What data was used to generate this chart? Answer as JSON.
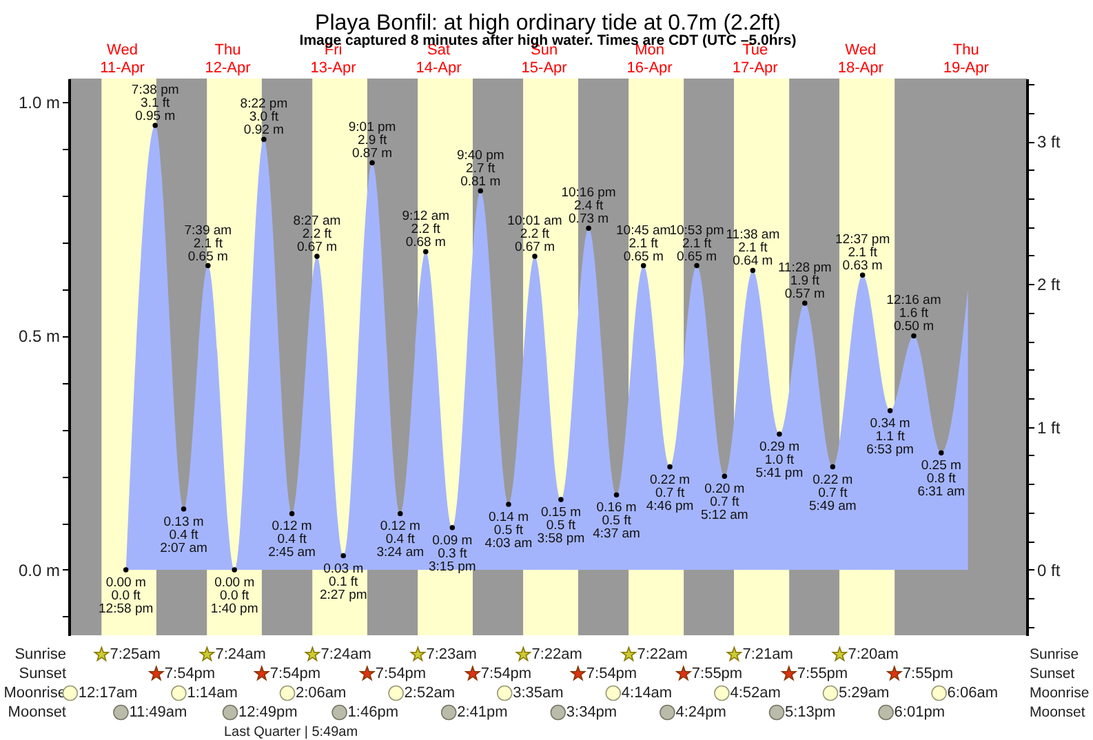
{
  "chart_data": {
    "type": "area",
    "title": "Playa Bonfil: at high  ordinary tide at 0.7m (2.2ft)",
    "subtitle": "Image captured 8 minutes after high water. Times are CDT (UTC –5.0hrs)",
    "x": [
      "--04-11T12:58",
      "--04-11T19:38",
      "--04-12T02:07",
      "--04-12T07:39",
      "--04-12T13:40",
      "--04-12T20:22",
      "--04-13T02:45",
      "--04-13T08:27",
      "--04-13T14:27",
      "--04-13T21:01",
      "--04-14T03:24",
      "--04-14T09:12",
      "--04-14T15:15",
      "--04-14T21:40",
      "--04-15T04:03",
      "--04-15T10:01",
      "--04-15T15:58",
      "--04-15T22:16",
      "--04-16T04:37",
      "--04-16T10:45",
      "--04-16T16:46",
      "--04-16T22:53",
      "--04-17T05:12",
      "--04-17T11:38",
      "--04-17T17:41",
      "--04-17T23:28",
      "--04-18T05:49",
      "--04-18T12:37",
      "--04-18T18:53",
      "--04-19T00:16",
      "--04-19T06:31",
      "--04-19T12:36"
    ],
    "values": [
      0.0,
      0.95,
      0.13,
      0.65,
      0.0,
      0.92,
      0.12,
      0.67,
      0.03,
      0.87,
      0.12,
      0.68,
      0.09,
      0.81,
      0.14,
      0.67,
      0.15,
      0.73,
      0.16,
      0.65,
      0.22,
      0.65,
      0.2,
      0.64,
      0.29,
      0.57,
      0.22,
      0.63,
      0.34,
      0.5,
      0.25,
      0.6
    ],
    "value_labels": [
      "0.00 m\n0.0 ft\n12:58 pm",
      "7:38 pm\n3.1 ft\n0.95 m",
      "0.13 m\n0.4 ft\n2:07 am",
      "7:39 am\n2.1 ft\n0.65 m",
      "0.00 m\n0.0 ft\n1:40 pm",
      "8:22 pm\n3.0 ft\n0.92 m",
      "0.12 m\n0.4 ft\n2:45 am",
      "8:27 am\n2.2 ft\n0.67 m",
      "0.03 m\n0.1 ft\n2:27 pm",
      "9:01 pm\n2.9 ft\n0.87 m",
      "0.12 m\n0.4 ft\n3:24 am",
      "9:12 am\n2.2 ft\n0.68 m",
      "0.09 m\n0.3 ft\n3:15 pm",
      "9:40 pm\n2.7 ft\n0.81 m",
      "0.14 m\n0.5 ft\n4:03 am",
      "10:01 am\n2.2 ft\n0.67 m",
      "0.15 m\n0.5 ft\n3:58 pm",
      "10:16 pm\n2.4 ft\n0.73 m",
      "0.16 m\n0.5 ft\n4:37 am",
      "10:45 am\n2.1 ft\n0.65 m",
      "0.22 m\n0.7 ft\n4:46 pm",
      "10:53 pm\n2.1 ft\n0.65 m",
      "0.20 m\n0.7 ft\n5:12 am",
      "11:38 am\n2.1 ft\n0.64 m",
      "0.29 m\n1.0 ft\n5:41 pm",
      "11:28 pm\n1.9 ft\n0.57 m",
      "0.22 m\n0.7 ft\n5:49 am",
      "12:37 pm\n2.1 ft\n0.63 m",
      "0.34 m\n1.1 ft\n6:53 pm",
      "12:16 am\n1.6 ft\n0.50 m",
      "0.25 m\n0.8 ft\n6:31 am",
      null
    ],
    "color": "#a4b4fc",
    "marker": "circle",
    "xlim": [
      "--04-11T00:00",
      "--04-20T02:00"
    ],
    "xticks": [
      {
        "value": "--04-11T12:00",
        "label": "Wed\n11-Apr"
      },
      {
        "value": "--04-12T12:00",
        "label": "Thu\n12-Apr"
      },
      {
        "value": "--04-13T12:00",
        "label": "Fri\n13-Apr"
      },
      {
        "value": "--04-14T12:00",
        "label": "Sat\n14-Apr"
      },
      {
        "value": "--04-15T12:00",
        "label": "Sun\n15-Apr"
      },
      {
        "value": "--04-16T12:00",
        "label": "Mon\n16-Apr"
      },
      {
        "value": "--04-17T12:00",
        "label": "Tue\n17-Apr"
      },
      {
        "value": "--04-18T12:00",
        "label": "Wed\n18-Apr"
      },
      {
        "value": "--04-19T12:00",
        "label": "Thu\n19-Apr"
      }
    ],
    "ylim": [
      -0.14,
      1.05
    ],
    "yticks": [
      {
        "value": -0.1,
        "label": null
      },
      {
        "value": 0,
        "label": "0.0 m"
      },
      {
        "value": 0.1,
        "label": null
      },
      {
        "value": 0.2,
        "label": null
      },
      {
        "value": 0.3,
        "label": null
      },
      {
        "value": 0.4,
        "label": null
      },
      {
        "value": 0.5,
        "label": "0.5 m"
      },
      {
        "value": 0.6,
        "label": null
      },
      {
        "value": 0.7,
        "label": null
      },
      {
        "value": 0.8,
        "label": null
      },
      {
        "value": 0.9,
        "label": null
      },
      {
        "value": 1,
        "label": "1.0 m"
      }
    ],
    "y2lim": [
      -0.46,
      3.44
    ],
    "y2ticks": [
      {
        "value": -0.4,
        "label": null
      },
      {
        "value": -0.2,
        "label": null
      },
      {
        "value": 0,
        "label": "0 ft"
      },
      {
        "value": 0.2,
        "label": null
      },
      {
        "value": 0.4,
        "label": null
      },
      {
        "value": 0.6,
        "label": null
      },
      {
        "value": 0.8,
        "label": null
      },
      {
        "value": 1,
        "label": "1 ft"
      },
      {
        "value": 1.2,
        "label": null
      },
      {
        "value": 1.4,
        "label": null
      },
      {
        "value": 1.6,
        "label": null
      },
      {
        "value": 1.8,
        "label": null
      },
      {
        "value": 2,
        "label": "2 ft"
      },
      {
        "value": 2.2,
        "label": null
      },
      {
        "value": 2.4,
        "label": null
      },
      {
        "value": 2.6,
        "label": null
      },
      {
        "value": 2.8,
        "label": null
      },
      {
        "value": 3,
        "label": "3 ft"
      },
      {
        "value": 3.2,
        "label": null
      },
      {
        "value": 3.4,
        "label": null
      }
    ],
    "bands": [
      {
        "axis": "x",
        "from": "--04-11T07:25",
        "to": "--04-11T19:54",
        "color": "#ffffcc"
      },
      {
        "axis": "x",
        "from": "--04-12T07:24",
        "to": "--04-12T19:54",
        "color": "#ffffcc"
      },
      {
        "axis": "x",
        "from": "--04-13T07:24",
        "to": "--04-13T19:54",
        "color": "#ffffcc"
      },
      {
        "axis": "x",
        "from": "--04-14T07:23",
        "to": "--04-14T19:54",
        "color": "#ffffcc"
      },
      {
        "axis": "x",
        "from": "--04-15T07:22",
        "to": "--04-15T19:54",
        "color": "#ffffcc"
      },
      {
        "axis": "x",
        "from": "--04-16T07:22",
        "to": "--04-16T19:55",
        "color": "#ffffcc"
      },
      {
        "axis": "x",
        "from": "--04-17T07:21",
        "to": "--04-17T19:55",
        "color": "#ffffcc"
      },
      {
        "axis": "x",
        "from": "--04-18T07:20",
        "to": "--04-18T19:55",
        "color": "#ffffcc"
      }
    ],
    "annotations": [
      "Sunrise",
      "7:25am",
      "7:24am",
      "7:24am",
      "7:23am",
      "7:22am",
      "7:22am",
      "7:21am",
      "7:20am",
      "Sunset",
      "7:54pm",
      "7:54pm",
      "7:54pm",
      "7:54pm",
      "7:54pm",
      "7:55pm",
      "7:55pm",
      "7:55pm",
      "Moonrise",
      "12:17am",
      "1:14am",
      "2:06am",
      "2:52am",
      "3:35am",
      "4:14am",
      "4:52am",
      "5:29am",
      "6:06am",
      "Moonset",
      "11:49am",
      "12:49pm",
      "1:46pm",
      "2:41pm",
      "3:34pm",
      "4:24pm",
      "5:13pm",
      "6:01pm",
      "Last Quarter | 5:49am"
    ]
  }
}
